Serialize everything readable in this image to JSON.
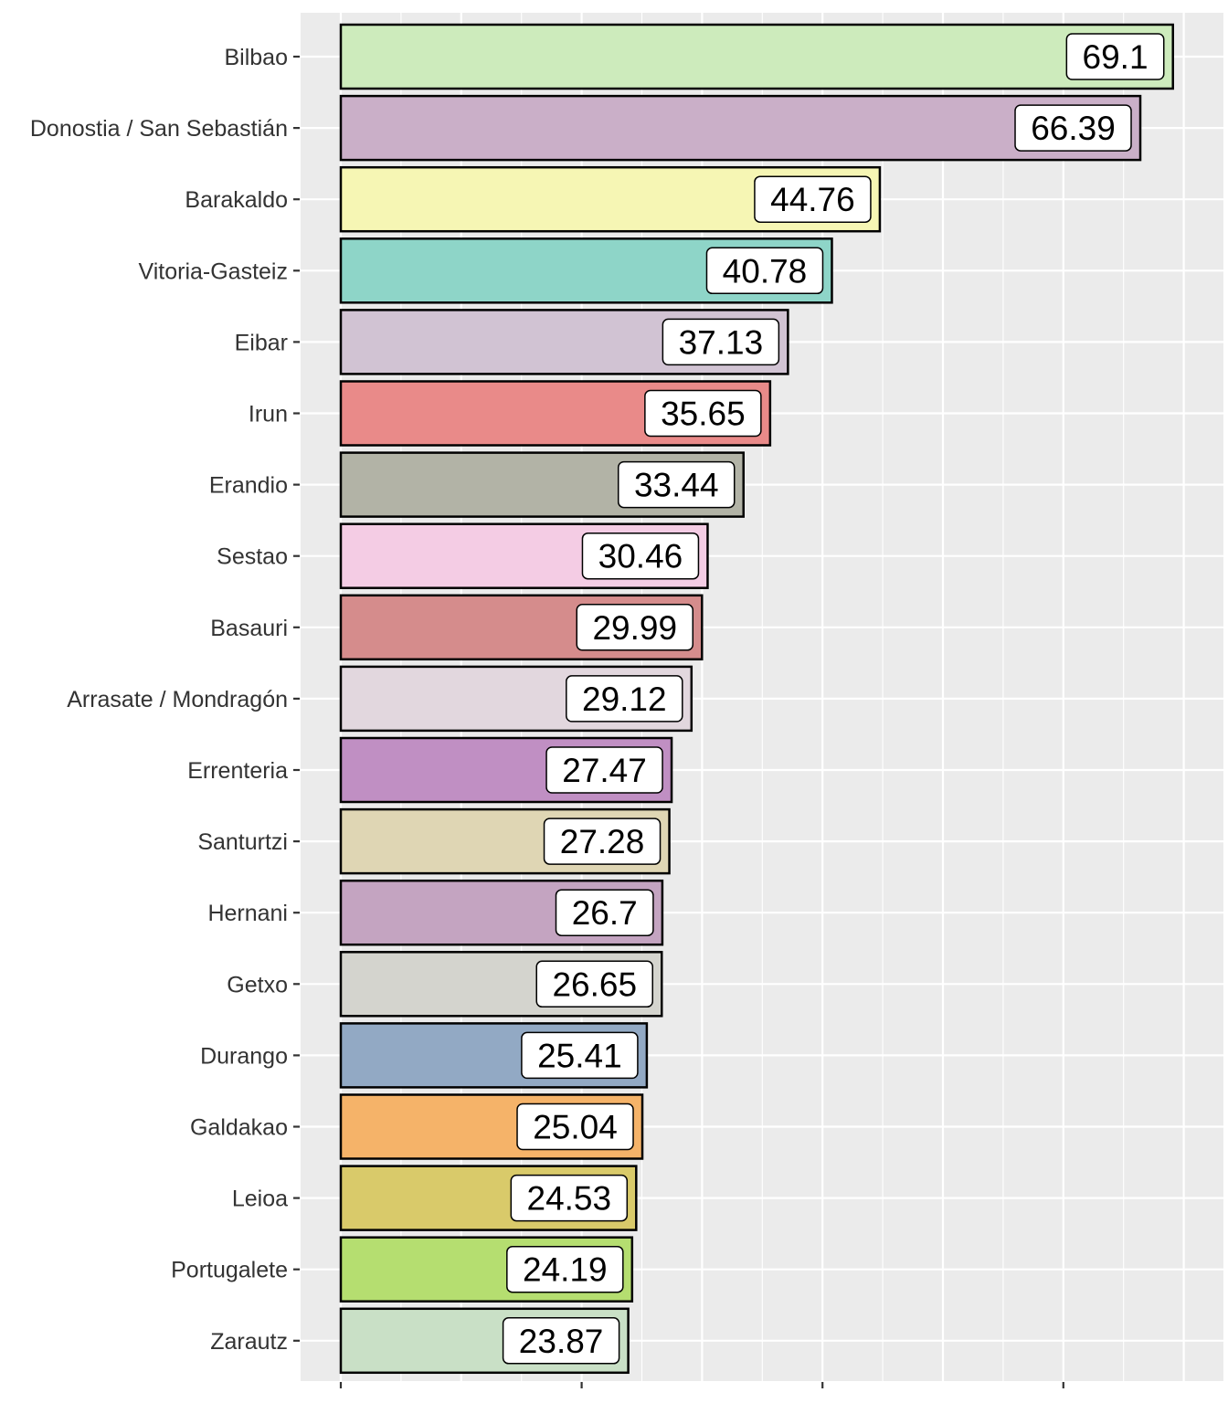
{
  "chart_data": {
    "type": "bar",
    "orientation": "horizontal",
    "title": "",
    "xlabel": "",
    "ylabel": "",
    "xlim": [
      0,
      70
    ],
    "grid": true,
    "legend": "none",
    "categories": [
      "Bilbao",
      "Donostia / San Sebastián",
      "Barakaldo",
      "Vitoria-Gasteiz",
      "Eibar",
      "Irun",
      "Erandio",
      "Sestao",
      "Basauri",
      "Arrasate / Mondragón",
      "Errenteria",
      "Santurtzi",
      "Hernani",
      "Getxo",
      "Durango",
      "Galdakao",
      "Leioa",
      "Portugalete",
      "Zarautz"
    ],
    "values": [
      69.1,
      66.39,
      44.76,
      40.78,
      37.13,
      35.65,
      33.44,
      30.46,
      29.99,
      29.12,
      27.47,
      27.28,
      26.7,
      26.65,
      25.41,
      25.04,
      24.53,
      24.19,
      23.87
    ],
    "labels": [
      "69.1",
      "66.39",
      "44.76",
      "40.78",
      "37.13",
      "35.65",
      "33.44",
      "30.46",
      "29.99",
      "29.12",
      "27.47",
      "27.28",
      "26.7",
      "26.65",
      "25.41",
      "25.04",
      "24.53",
      "24.19",
      "23.87"
    ],
    "colors": [
      "#CDEBBC",
      "#CAAFC8",
      "#F6F6B4",
      "#8ED5C8",
      "#D1C3D3",
      "#E98A89",
      "#B2B3A6",
      "#F4CCE4",
      "#D58C8C",
      "#E2D7DE",
      "#C08FC3",
      "#DFD6B4",
      "#C4A4C1",
      "#D4D4CE",
      "#92A9C4",
      "#F5B369",
      "#D9CA6A",
      "#B5DE70",
      "#C9E0C6"
    ]
  }
}
